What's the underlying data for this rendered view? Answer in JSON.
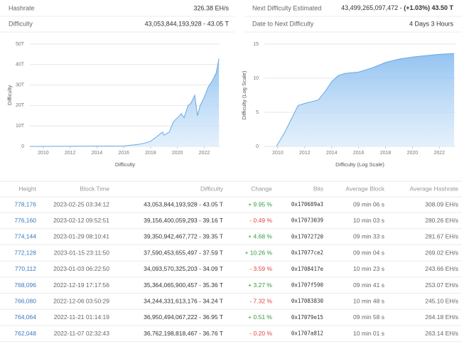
{
  "stats": [
    {
      "label": "Hashrate",
      "value": "326.38 EH/s"
    },
    {
      "label": "Difficulty",
      "value": "43,053,844,193,928 - 43.05 T"
    },
    {
      "label": "Next Difficulty Estimated",
      "value": "43,499,265,097,472 -",
      "value_strong": "(+1.03%) 43.50 T"
    },
    {
      "label": "Date to Next Difficulty",
      "value": "4 Days 3 Hours"
    }
  ],
  "chart_data": [
    {
      "type": "area",
      "xlabel": "Difficulty",
      "ylabel": "Difficulty",
      "color": "#6aa8e6",
      "x": [
        2009,
        2016,
        2017,
        2017.5,
        2018,
        2018.5,
        2018.9,
        2019,
        2019.4,
        2019.7,
        2020,
        2020.3,
        2020.5,
        2020.8,
        2021,
        2021.3,
        2021.5,
        2021.7,
        2022,
        2022.3,
        2022.6,
        2022.9,
        2023.1
      ],
      "values": [
        0,
        0.2,
        0.9,
        1.5,
        2.5,
        5,
        7,
        5.5,
        7,
        12,
        14,
        16,
        14,
        20,
        21,
        25,
        15,
        20,
        24,
        29,
        32,
        36,
        43
      ],
      "xlim": [
        2009,
        2023.2
      ],
      "xticks": [
        2010,
        2012,
        2014,
        2016,
        2018,
        2020,
        2022
      ],
      "ylim": [
        0,
        50
      ],
      "yticks": [
        0,
        {
          "value": 10,
          "label": "10T"
        },
        {
          "value": 20,
          "label": "20T"
        },
        {
          "value": 30,
          "label": "30T"
        },
        {
          "value": 40,
          "label": "40T"
        },
        {
          "value": 50,
          "label": "50T"
        }
      ],
      "grid": true
    },
    {
      "type": "area",
      "xlabel": "Difficulty (Log Scale)",
      "ylabel": "Difficulty (Log Scale)",
      "color": "#6aa8e6",
      "x": [
        2009.9,
        2010.5,
        2011,
        2011.5,
        2012,
        2013,
        2013.5,
        2014,
        2014.5,
        2015,
        2016,
        2017,
        2018,
        2019,
        2020,
        2021,
        2022,
        2023.1
      ],
      "values": [
        0,
        2,
        4,
        6,
        6.3,
        6.8,
        8,
        9.5,
        10.4,
        10.7,
        10.9,
        11.5,
        12.3,
        12.8,
        13.1,
        13.3,
        13.5,
        13.6
      ],
      "xlim": [
        2009,
        2023.2
      ],
      "xticks": [
        2010,
        2012,
        2014,
        2016,
        2018,
        2020,
        2022
      ],
      "ylim": [
        0,
        15
      ],
      "yticks": [
        0,
        5,
        10,
        15
      ],
      "grid": true
    }
  ],
  "table": {
    "headers": [
      "Height",
      "Block Time",
      "Difficulty",
      "Change",
      "Bits",
      "Average Block",
      "Average Hashrate"
    ],
    "rows": [
      [
        "778,176",
        "2023-02-25 03:34:12",
        "43,053,844,193,928 - 43.05 T",
        "+ 9.95 %",
        "0x170689a3",
        "09 min 06 s",
        "308.09 EH/s"
      ],
      [
        "776,160",
        "2023-02-12 09:52:51",
        "39,156,400,059,293 - 39.16 T",
        "- 0.49 %",
        "0x17073039",
        "10 min 03 s",
        "280.26 EH/s"
      ],
      [
        "774,144",
        "2023-01-29 08:10:41",
        "39,350,942,467,772 - 39.35 T",
        "+ 4.68 %",
        "0x17072720",
        "09 min 33 s",
        "281.67 EH/s"
      ],
      [
        "772,128",
        "2023-01-15 23:11:50",
        "37,590,453,655,497 - 37.59 T",
        "+ 10.26 %",
        "0x17077ce2",
        "09 min 04 s",
        "269.02 EH/s"
      ],
      [
        "770,112",
        "2023-01-03 06:22:50",
        "34,093,570,325,203 - 34.09 T",
        "- 3.59 %",
        "0x1708417e",
        "10 min 23 s",
        "243.66 EH/s"
      ],
      [
        "768,096",
        "2022-12-19 17:17:56",
        "35,364,065,900,457 - 35.36 T",
        "+ 3.27 %",
        "0x1707f590",
        "09 min 41 s",
        "253.07 EH/s"
      ],
      [
        "766,080",
        "2022-12-06 03:50:29",
        "34,244,331,613,176 - 34.24 T",
        "- 7.32 %",
        "0x17083830",
        "10 min 48 s",
        "245.10 EH/s"
      ],
      [
        "764,064",
        "2022-11-21 01:14:19",
        "36,950,494,067,222 - 36.95 T",
        "+ 0.51 %",
        "0x17079e15",
        "09 min 58 s",
        "264.18 EH/s"
      ],
      [
        "762,048",
        "2022-11-07 02:32:43",
        "36,762,198,818,467 - 36.76 T",
        "- 0.20 %",
        "0x1707a812",
        "10 min 01 s",
        "263.14 EH/s"
      ]
    ]
  }
}
